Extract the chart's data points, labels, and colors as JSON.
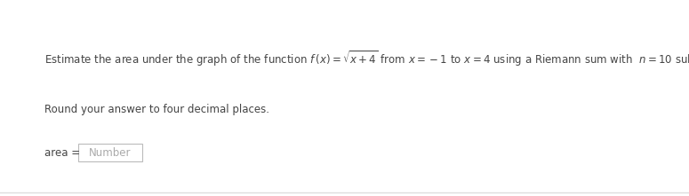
{
  "line1_part1": "Estimate the area under the graph of the function ",
  "line1_math": "$f\\,(x) = \\sqrt{x+4}$",
  "line1_part2": " from ",
  "line1_math2": "$x = -1$",
  "line1_part3": " to ",
  "line1_math3": "$x = 4$",
  "line1_part4": " using a Riemann sum with  ",
  "line1_math4": "$n = 10$",
  "line1_part5": " subintervals and midpoints.",
  "line2": "Round your answer to four decimal places.",
  "area_label": "area = ",
  "box_text": "Number",
  "bg_color": "#ffffff",
  "text_color": "#444444",
  "box_text_color": "#aaaaaa",
  "box_edge_color": "#bbbbbb",
  "font_size": 8.5,
  "bottom_line_color": "#dddddd",
  "fig_width": 7.75,
  "fig_height": 2.21,
  "dpi": 100
}
